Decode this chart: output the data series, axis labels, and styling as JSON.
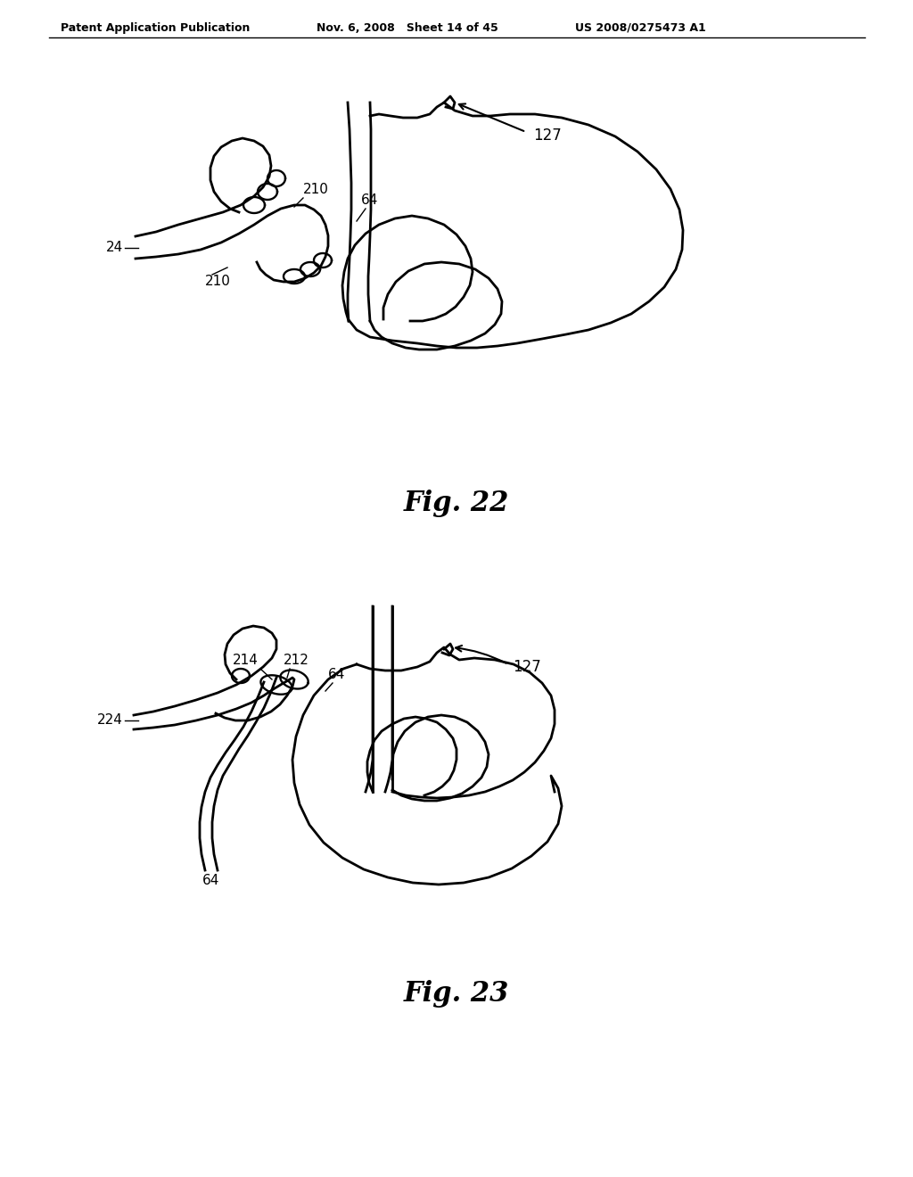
{
  "background_color": "#ffffff",
  "header_left": "Patent Application Publication",
  "header_mid": "Nov. 6, 2008   Sheet 14 of 45",
  "header_right": "US 2008/0275473 A1",
  "fig22_label": "Fig. 22",
  "fig23_label": "Fig. 23",
  "labels_fig22": {
    "210_top": "210",
    "64": "64",
    "24": "24",
    "210_bot": "210",
    "127": "127"
  },
  "labels_fig23": {
    "214": "214",
    "212": "212",
    "64_top": "64",
    "224": "224",
    "64_bot": "64",
    "127": "127"
  },
  "line_color": "#000000",
  "line_width": 2.0,
  "font_color": "#000000"
}
